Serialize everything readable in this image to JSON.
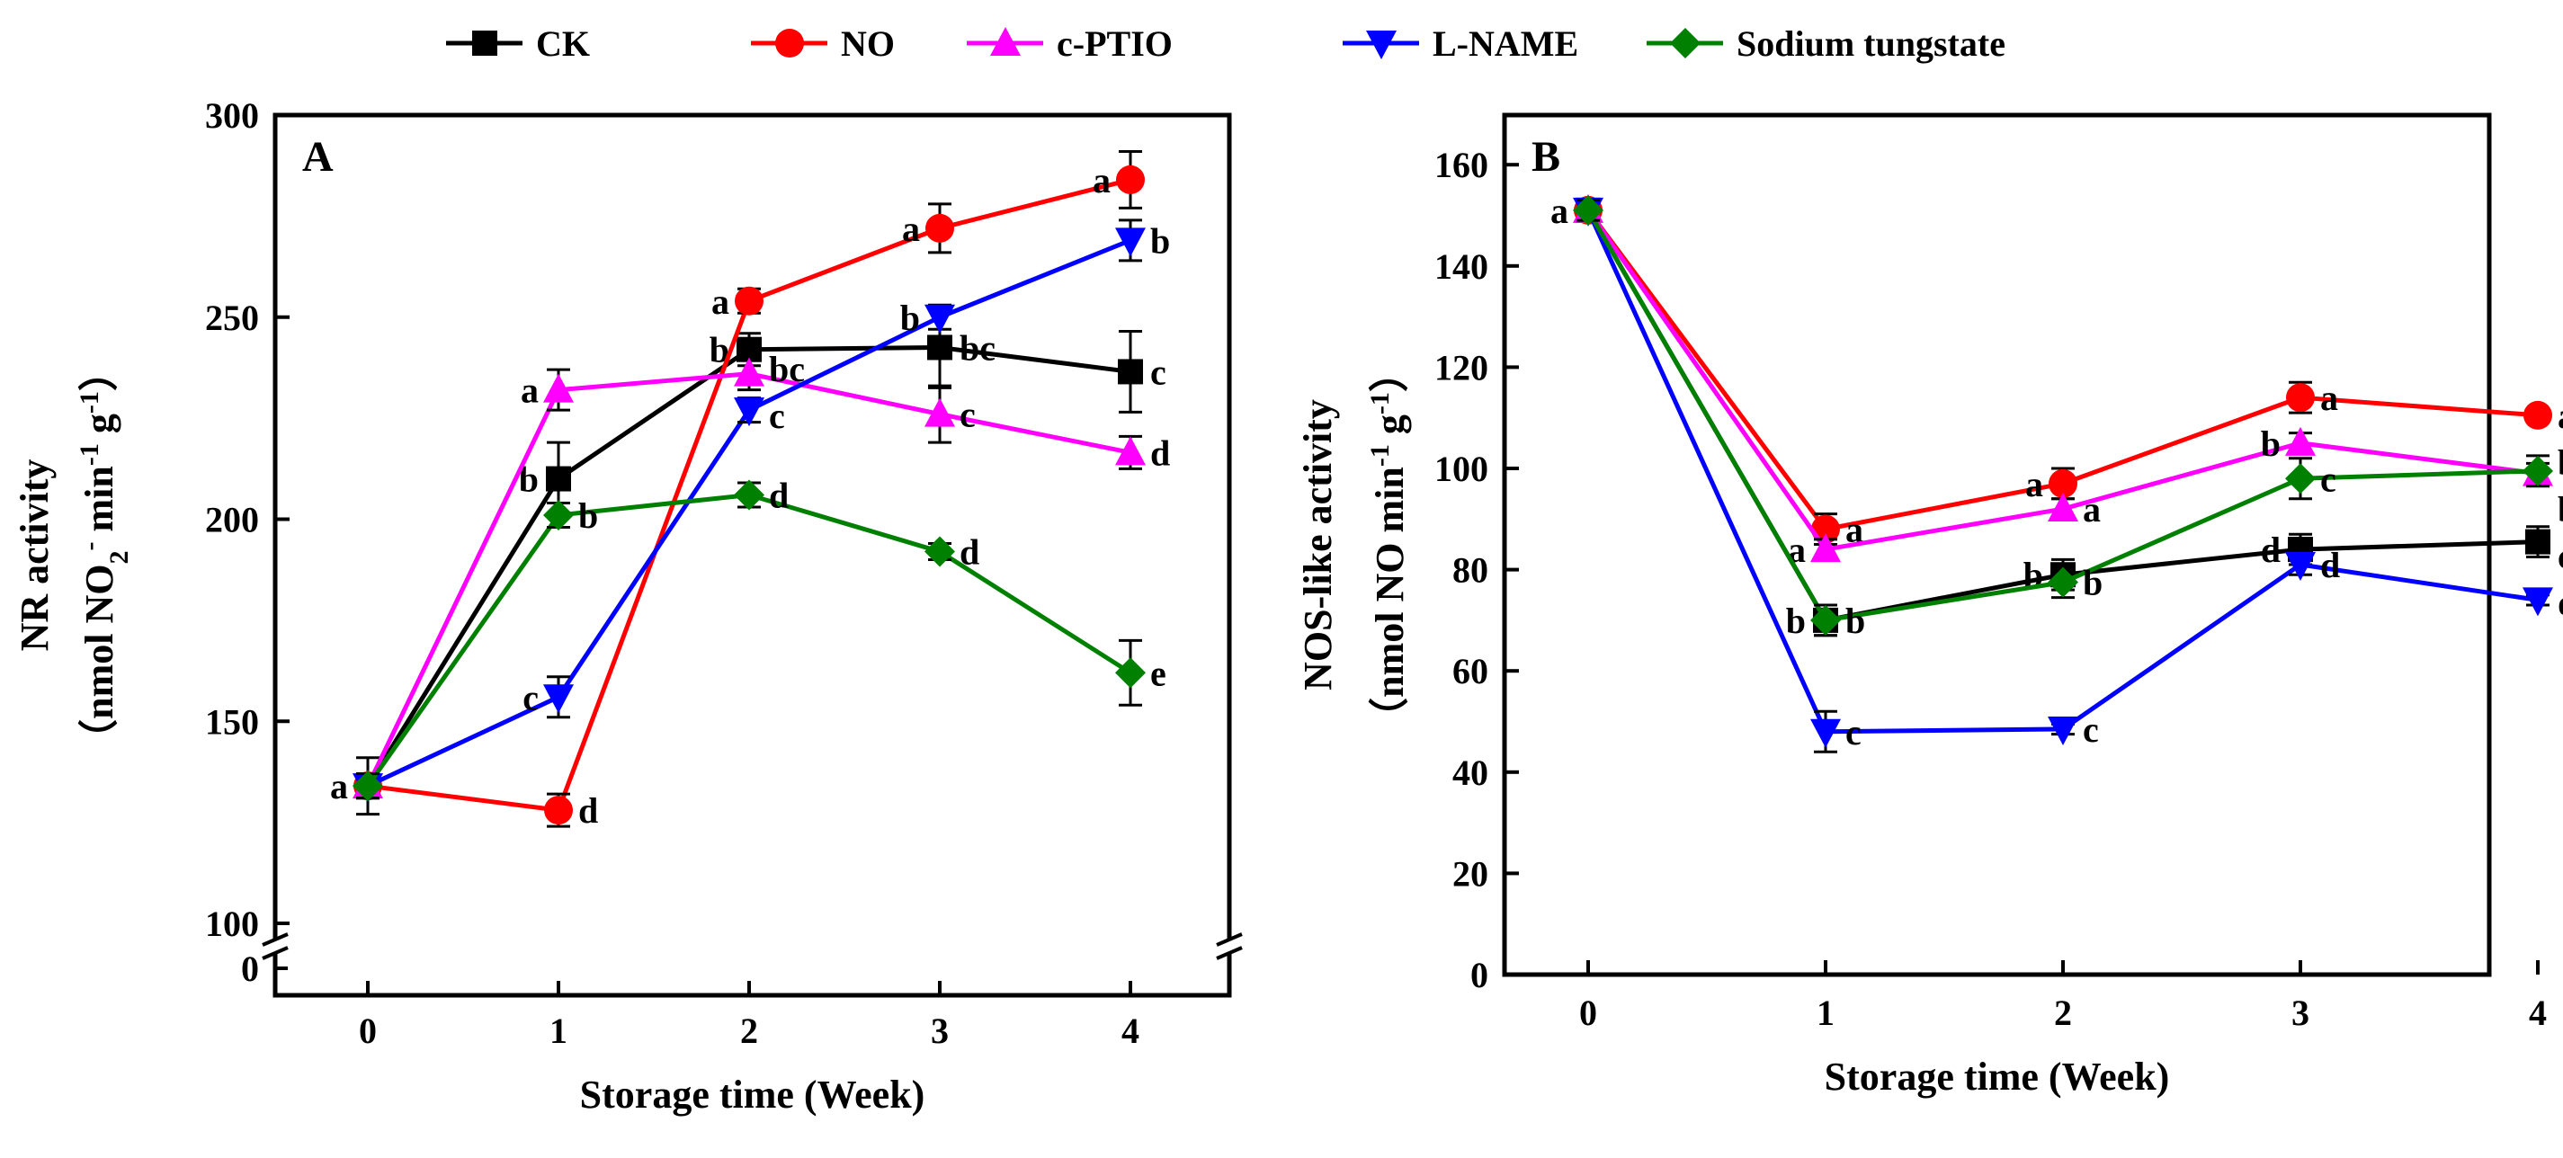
{
  "legend": [
    "CK",
    "NO",
    "c-PTIO",
    "L-NAME",
    "Sodium tungstate"
  ],
  "colors": {
    "CK": "#000000",
    "NO": "#ff0000",
    "c-PTIO": "#ff00ff",
    "L-NAME": "#0000ff",
    "Sodium tungstate": "#008000"
  },
  "markers": {
    "CK": "square",
    "NO": "circle",
    "c-PTIO": "triangle-up",
    "L-NAME": "triangle-down",
    "Sodium tungstate": "diamond"
  },
  "chart_data": [
    {
      "type": "line",
      "panel_label": "A",
      "xlabel": "Storage time (Week)",
      "ylabel": {
        "title": "NR activity",
        "open": "（nmol NO",
        "sub": "2",
        "sup1": "-",
        "mid1": " min",
        "sup2": "-1",
        "mid2": " g",
        "sup3": "-1",
        "close": "）"
      },
      "x": [
        0,
        1,
        2,
        3,
        4
      ],
      "x_ticks": [
        "0",
        "1",
        "2",
        "3",
        "4"
      ],
      "y_ticks": [
        "100",
        "150",
        "200",
        "250",
        "300"
      ],
      "y_ticks_below_break": [
        "0"
      ],
      "ylim": [
        0,
        300
      ],
      "y_axis_break": [
        0,
        100
      ],
      "grid": false,
      "series": [
        {
          "name": "CK",
          "values": [
            134,
            210,
            242,
            242.5,
            236.5
          ],
          "errors": [
            7,
            9,
            4,
            10,
            10
          ],
          "letters": [
            "",
            "b",
            "b",
            "bc",
            "c"
          ]
        },
        {
          "name": "NO",
          "values": [
            134,
            128,
            254,
            272,
            284
          ],
          "errors": [
            3,
            4,
            3,
            6,
            7
          ],
          "letters": [
            "",
            "d",
            "a",
            "a",
            "a"
          ]
        },
        {
          "name": "c-PTIO",
          "values": [
            134,
            232,
            236,
            226,
            216.5
          ],
          "errors": [
            3,
            5,
            4,
            7,
            4
          ],
          "letters": [
            "",
            "a",
            "bc",
            "c",
            "d"
          ]
        },
        {
          "name": "L-NAME",
          "values": [
            134,
            156,
            227,
            250,
            269
          ],
          "errors": [
            3,
            5,
            3,
            3,
            5
          ],
          "letters": [
            "",
            "c",
            "c",
            "b",
            "b"
          ]
        },
        {
          "name": "Sodium tungstate",
          "values": [
            134,
            201,
            206,
            192,
            162
          ],
          "errors": [
            3,
            3,
            3,
            2,
            8
          ],
          "letters": [
            "a",
            "b",
            "d",
            "d",
            "e"
          ]
        }
      ]
    },
    {
      "type": "line",
      "panel_label": "B",
      "xlabel": "Storage time (Week)",
      "ylabel": {
        "title": "NOS-like activity",
        "open": "（nmol NO min",
        "sup1": "-1",
        "mid1": " g",
        "sup2": "-1",
        "close": "）"
      },
      "x": [
        0,
        1,
        2,
        3,
        4
      ],
      "x_ticks": [
        "0",
        "1",
        "2",
        "3",
        "4"
      ],
      "y_ticks": [
        "0",
        "20",
        "40",
        "60",
        "80",
        "100",
        "120",
        "140",
        "160"
      ],
      "ylim": [
        0,
        170
      ],
      "grid": false,
      "series": [
        {
          "name": "CK",
          "values": [
            151,
            70,
            79,
            84,
            85.5
          ],
          "errors": [
            2,
            3,
            3,
            3,
            3
          ],
          "letters": [
            "",
            "b",
            "b",
            "d",
            "c"
          ]
        },
        {
          "name": "NO",
          "values": [
            151,
            88,
            97,
            114,
            110.5
          ],
          "errors": [
            2,
            3,
            3,
            3,
            1
          ],
          "letters": [
            "",
            "a",
            "a",
            "a",
            "a"
          ]
        },
        {
          "name": "c-PTIO",
          "values": [
            151,
            84,
            92,
            105,
            99
          ],
          "errors": [
            2,
            2,
            2,
            2,
            2
          ],
          "letters": [
            "",
            "a",
            "a",
            "b",
            "b"
          ]
        },
        {
          "name": "L-NAME",
          "values": [
            151,
            48,
            48.5,
            81,
            74
          ],
          "errors": [
            2,
            4,
            1,
            2,
            1
          ],
          "letters": [
            "",
            "c",
            "c",
            "d",
            "d"
          ]
        },
        {
          "name": "Sodium tungstate",
          "values": [
            151,
            70,
            77.5,
            98,
            99.5
          ],
          "errors": [
            2,
            3,
            3,
            4,
            3
          ],
          "letters": [
            "a",
            "b",
            "b",
            "c",
            "b"
          ]
        }
      ]
    }
  ]
}
